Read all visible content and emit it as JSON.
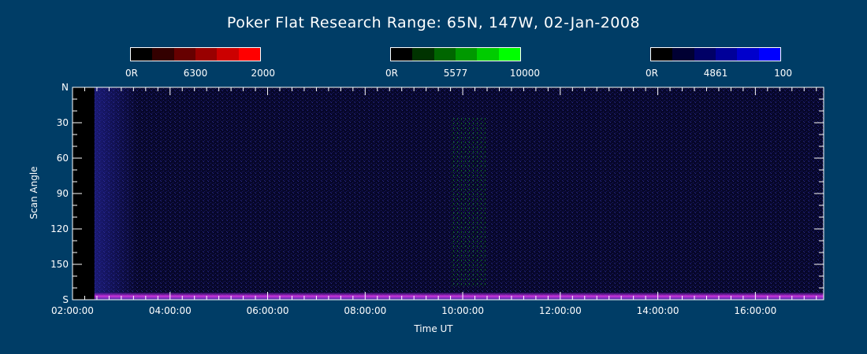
{
  "chart_data": {
    "type": "heatmap",
    "title": "Poker Flat Research Range: 65N, 147W, 02-Jan-2008",
    "xlabel": "Time UT",
    "ylabel": "Scan Angle",
    "x_tick_labels": [
      "02:00:00",
      "04:00:00",
      "06:00:00",
      "08:00:00",
      "10:00:00",
      "12:00:00",
      "14:00:00",
      "16:00:00"
    ],
    "y_tick_labels": [
      "N",
      "30",
      "60",
      "90",
      "120",
      "150",
      "S"
    ],
    "x_ticks_hours": [
      2,
      4,
      6,
      8,
      10,
      12,
      14,
      16
    ],
    "y_ticks_deg": [
      0,
      30,
      60,
      90,
      120,
      150,
      180
    ],
    "xlim_hours": [
      2.0,
      17.4
    ],
    "ylim_deg": [
      0,
      180
    ],
    "data_start_hour": 2.45,
    "colorbars": [
      {
        "left_label": "0R",
        "center_label": "6300",
        "right_label": "2000",
        "colors": [
          "#000000",
          "#330000",
          "#660000",
          "#990000",
          "#cc0000",
          "#ff0000"
        ]
      },
      {
        "left_label": "0R",
        "center_label": "5577",
        "right_label": "10000",
        "colors": [
          "#000000",
          "#003300",
          "#006600",
          "#009900",
          "#00cc00",
          "#00ff00"
        ]
      },
      {
        "left_label": "0R",
        "center_label": "4861",
        "right_label": "100",
        "colors": [
          "#000000",
          "#000033",
          "#000066",
          "#000099",
          "#0000cc",
          "#0000ff"
        ]
      }
    ],
    "features": {
      "green_patch": {
        "t_start": 9.75,
        "t_end": 10.5,
        "deg_start": 25,
        "deg_end": 170
      },
      "magenta_band_deg": [
        174,
        180
      ]
    }
  }
}
